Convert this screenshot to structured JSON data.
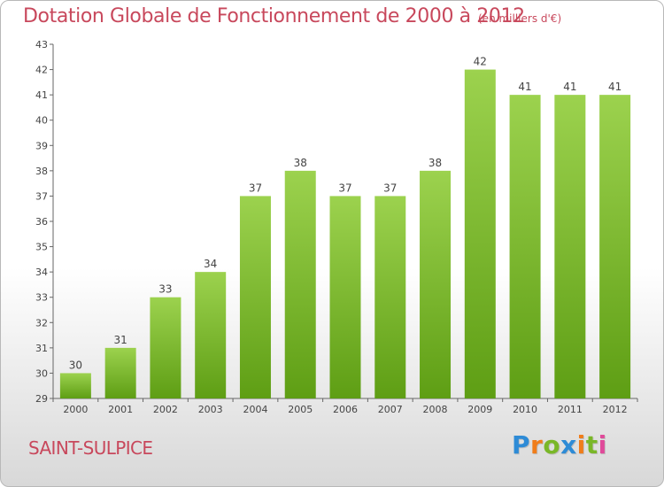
{
  "header": {
    "title": "Dotation Globale de Fonctionnement de 2000 à 2012",
    "subtitle": "(en milliers d'€)"
  },
  "footer": {
    "commune": "SAINT-SULPICE",
    "logo_letters": [
      "P",
      "r",
      "o",
      "x",
      "i",
      "t",
      "i"
    ],
    "logo_colors": [
      "#2e8bd6",
      "#f07d1a",
      "#7ab728",
      "#2e8bd6",
      "#f07d1a",
      "#7ab728",
      "#e04a9a"
    ]
  },
  "colors": {
    "bar_top": "#9cd24e",
    "bar_bottom": "#5e9e14",
    "axis": "#666666",
    "text": "#444444",
    "accent": "#c8485c"
  },
  "chart_data": {
    "type": "bar",
    "categories": [
      "2000",
      "2001",
      "2002",
      "2003",
      "2004",
      "2005",
      "2006",
      "2007",
      "2008",
      "2009",
      "2010",
      "2011",
      "2012"
    ],
    "values": [
      30,
      31,
      33,
      34,
      37,
      38,
      37,
      37,
      38,
      42,
      41,
      41,
      41
    ],
    "labels": [
      "30",
      "31",
      "33",
      "34",
      "37",
      "38",
      "37",
      "37",
      "38",
      "42",
      "41",
      "41",
      "41"
    ],
    "ylim": [
      29,
      43
    ],
    "yticks": [
      29,
      30,
      31,
      32,
      33,
      34,
      35,
      36,
      37,
      38,
      39,
      40,
      41,
      42,
      43
    ],
    "grid": false,
    "legend": "none"
  }
}
